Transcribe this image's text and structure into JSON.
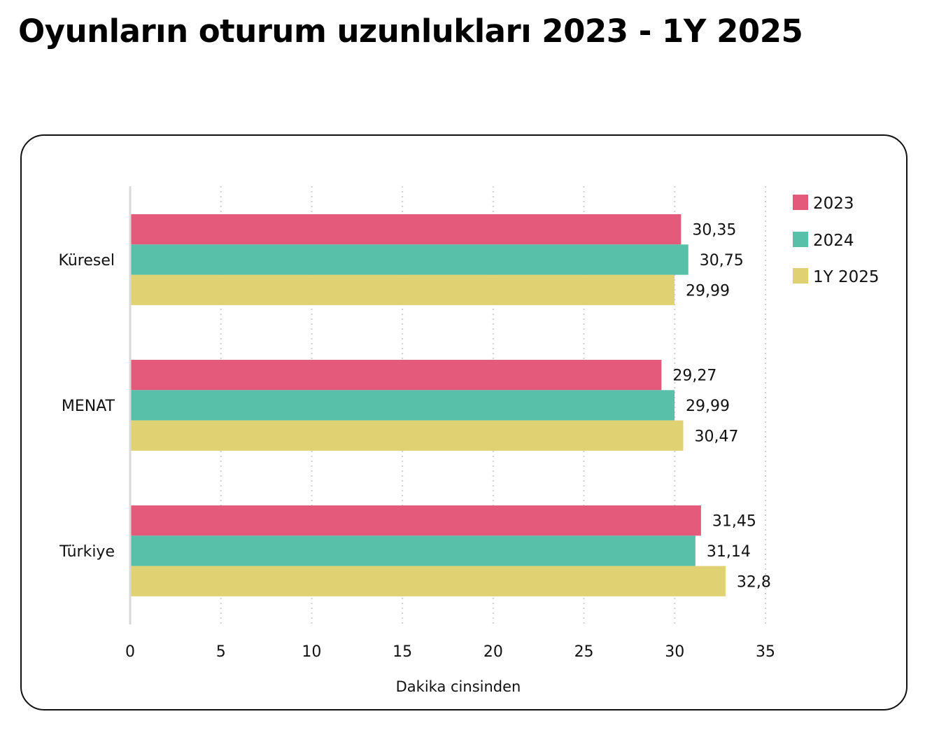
{
  "title": "Oyunların oturum uzunlukları 2023 - 1Y 2025",
  "chart_data": {
    "type": "bar",
    "orientation": "horizontal",
    "title": "Oyunların oturum uzunlukları 2023 - 1Y 2025",
    "xlabel": "Dakika cinsinden",
    "ylabel": "",
    "xlim": [
      0,
      35
    ],
    "xticks": [
      0,
      5,
      10,
      15,
      20,
      25,
      30,
      35
    ],
    "grid": "vertical-dotted",
    "legend_position": "top-right",
    "categories": [
      "Küresel",
      "MENAT",
      "Türkiye"
    ],
    "series": [
      {
        "name": "2023",
        "color": "#e45a7b",
        "values": [
          30.35,
          29.27,
          31.45
        ],
        "labels": [
          "30,35",
          "29,27",
          "31,45"
        ]
      },
      {
        "name": "2024",
        "color": "#58bfa9",
        "values": [
          30.75,
          29.99,
          31.14
        ],
        "labels": [
          "30,75",
          "29,99",
          "31,14"
        ]
      },
      {
        "name": "1Y 2025",
        "color": "#e0d272",
        "values": [
          29.99,
          30.47,
          32.8
        ],
        "labels": [
          "29,99",
          "30,47",
          "32,8"
        ]
      }
    ]
  }
}
